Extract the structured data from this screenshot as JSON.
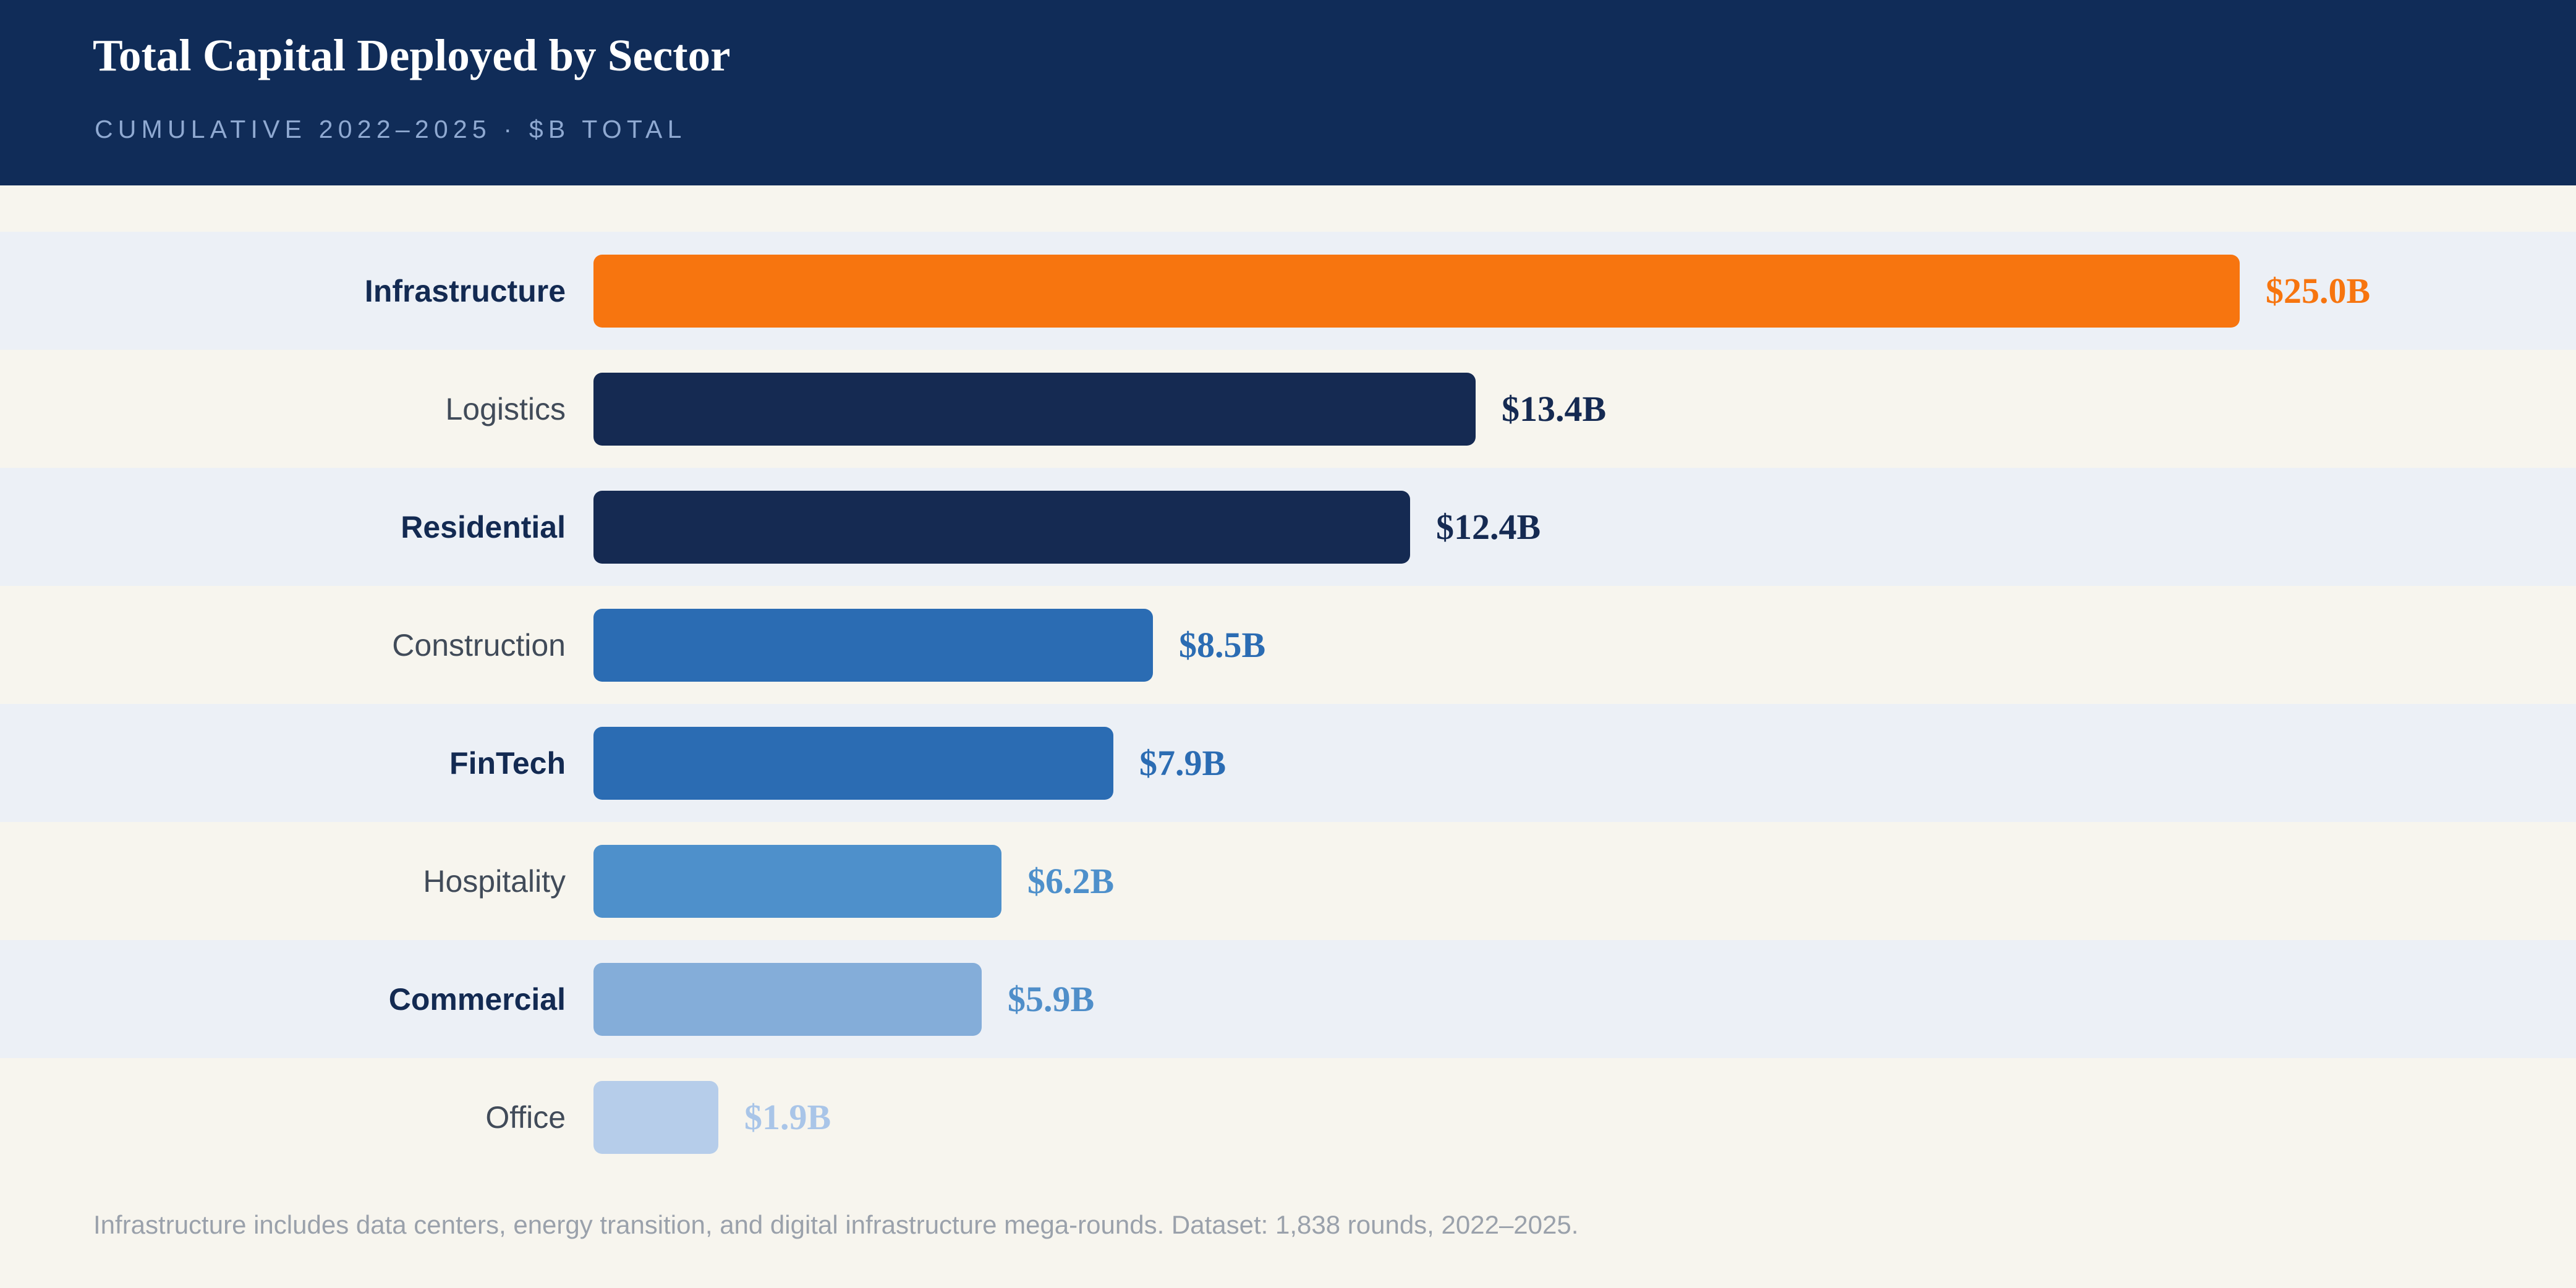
{
  "header": {
    "title": "Total Capital Deployed by Sector",
    "subtitle": "CUMULATIVE 2022–2025 · $B TOTAL"
  },
  "footer": {
    "note": "Infrastructure includes data centers, energy transition, and digital infrastructure mega-rounds. Dataset: 1,838 rounds, 2022–2025."
  },
  "colors": {
    "header_bg": "#102c58",
    "page_bg": "#f7f5ee",
    "stripe_bg": "#ecf0f6",
    "title_text": "#ffffff",
    "subtitle_text": "#8fa9d1",
    "label_bold_text": "#132a52",
    "label_regular_text": "#414b59",
    "footer_text": "#9aa1ab",
    "accent_orange": "#f7750f"
  },
  "chart_data": {
    "type": "bar",
    "orientation": "horizontal",
    "title": "Total Capital Deployed by Sector",
    "subtitle": "CUMULATIVE 2022–2025 · $B TOTAL",
    "xlabel": "",
    "ylabel": "",
    "unit": "$B",
    "xlim": [
      0,
      25
    ],
    "grid": false,
    "legend": false,
    "categories": [
      "Infrastructure",
      "Logistics",
      "Residential",
      "Construction",
      "FinTech",
      "Hospitality",
      "Commercial",
      "Office"
    ],
    "values": [
      25.0,
      13.4,
      12.4,
      8.5,
      7.9,
      6.2,
      5.9,
      1.9
    ],
    "value_labels": [
      "$25.0B",
      "$13.4B",
      "$12.4B",
      "$8.5B",
      "$7.9B",
      "$6.2B",
      "$5.9B",
      "$1.9B"
    ],
    "bar_colors": [
      "#f7750f",
      "#152a52",
      "#152a52",
      "#2b6cb3",
      "#2b6cb3",
      "#4e90cb",
      "#84add9",
      "#b6cdea"
    ],
    "value_colors": [
      "#f7750f",
      "#152a52",
      "#152a52",
      "#2b6cb3",
      "#2b6cb3",
      "#4e90cb",
      "#4f8ec9",
      "#a9c5e8"
    ],
    "label_emphasis": [
      true,
      false,
      true,
      false,
      true,
      false,
      true,
      false
    ],
    "row_striped": [
      true,
      false,
      true,
      false,
      true,
      false,
      true,
      false
    ],
    "annotation": "Infrastructure includes data centers, energy transition, and digital infrastructure mega-rounds. Dataset: 1,838 rounds, 2022–2025."
  }
}
